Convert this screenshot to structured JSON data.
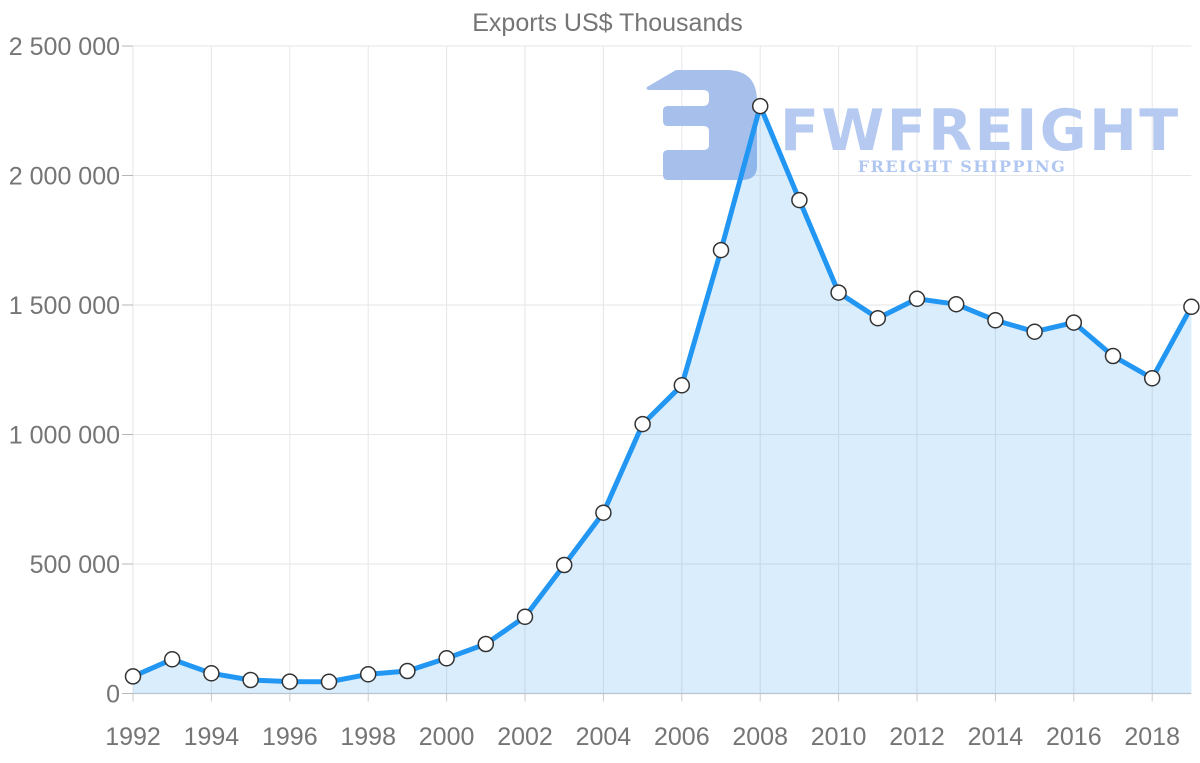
{
  "chart_data": {
    "type": "area",
    "title": "Exports US$ Thousands",
    "xlabel": "",
    "ylabel": "",
    "x": [
      1992,
      1993,
      1994,
      1995,
      1996,
      1997,
      1998,
      1999,
      2000,
      2001,
      2002,
      2003,
      2004,
      2005,
      2006,
      2007,
      2008,
      2009,
      2010,
      2011,
      2012,
      2013,
      2014,
      2015,
      2016,
      2017,
      2018,
      2019
    ],
    "series": [
      {
        "name": "Exports US$ Thousands",
        "values": [
          66000,
          132000,
          78000,
          52000,
          46000,
          45000,
          74000,
          87000,
          136000,
          191000,
          296000,
          496000,
          698000,
          1040000,
          1190000,
          1712000,
          2268000,
          1905000,
          1548000,
          1449000,
          1524000,
          1503000,
          1441000,
          1397000,
          1432000,
          1303000,
          1217000,
          1493000
        ]
      }
    ],
    "xlim": [
      1992,
      2019
    ],
    "ylim": [
      0,
      2500000
    ],
    "grid": true,
    "legend": "none",
    "x_ticks": [
      {
        "value": 1992,
        "label": "1992"
      },
      {
        "value": 1994,
        "label": "1994"
      },
      {
        "value": 1996,
        "label": "1996"
      },
      {
        "value": 1998,
        "label": "1998"
      },
      {
        "value": 2000,
        "label": "2000"
      },
      {
        "value": 2002,
        "label": "2002"
      },
      {
        "value": 2004,
        "label": "2004"
      },
      {
        "value": 2006,
        "label": "2006"
      },
      {
        "value": 2008,
        "label": "2008"
      },
      {
        "value": 2010,
        "label": "2010"
      },
      {
        "value": 2012,
        "label": "2012"
      },
      {
        "value": 2014,
        "label": "2014"
      },
      {
        "value": 2016,
        "label": "2016"
      },
      {
        "value": 2018,
        "label": "2018"
      }
    ],
    "y_ticks": [
      {
        "value": 0,
        "label": "0"
      },
      {
        "value": 500000,
        "label": "500 000"
      },
      {
        "value": 1000000,
        "label": "1 000 000"
      },
      {
        "value": 1500000,
        "label": "1 500 000"
      },
      {
        "value": 2000000,
        "label": "2 000 000"
      },
      {
        "value": 2500000,
        "label": "2 500 000"
      }
    ],
    "colors": {
      "line": "#2196f3",
      "fill": "rgba(33,150,243,0.17)",
      "marker_fill": "#ffffff",
      "marker_stroke": "#333333",
      "grid": "#e6e6e6",
      "axis_line": "#c9c9c9",
      "tick": "#b7b7b7",
      "text": "#757575"
    }
  },
  "watermark": {
    "brand": "FWFREIGHT",
    "tagline": "FREIGHT SHIPPING",
    "logo_icon": "fw-logo",
    "logo_color": "#a6bfeb",
    "brand_color": "#b6caf1",
    "tagline_color": "#b0c7f2"
  }
}
